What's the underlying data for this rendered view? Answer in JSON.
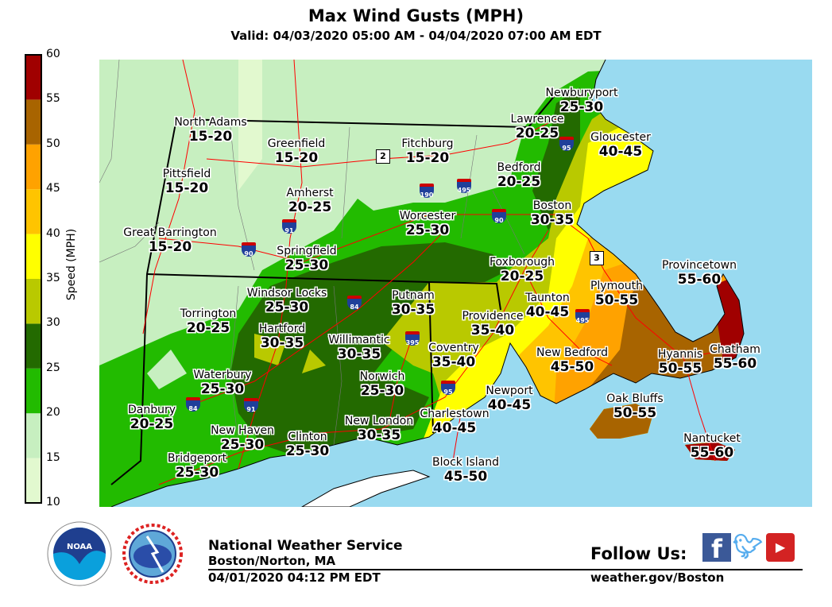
{
  "header": {
    "title": "Max Wind Gusts (MPH)",
    "valid": "Valid: 04/03/2020 05:00 AM - 04/04/2020 07:00 AM EDT"
  },
  "colorbar": {
    "label": "Speed (MPH)",
    "ticks": [
      "10",
      "15",
      "20",
      "25",
      "30",
      "35",
      "40",
      "45",
      "50",
      "55",
      "60"
    ],
    "colors": [
      "#e2f9cf",
      "#c7efc0",
      "#22bb00",
      "#236a00",
      "#b9c900",
      "#ffff00",
      "#ffc400",
      "#ffa200",
      "#a86400",
      "#a00000"
    ]
  },
  "map_colors": {
    "ocean": "#99daf0",
    "roads": "#ff0000",
    "borders": "#000000"
  },
  "locations": [
    {
      "name": "North Adams",
      "value": "15-20"
    },
    {
      "name": "Greenfield",
      "value": "15-20"
    },
    {
      "name": "Fitchburg",
      "value": "15-20"
    },
    {
      "name": "Pittsfield",
      "value": "15-20"
    },
    {
      "name": "Amherst",
      "value": "20-25"
    },
    {
      "name": "Bedford",
      "value": "20-25"
    },
    {
      "name": "Lawrence",
      "value": "20-25"
    },
    {
      "name": "Newburyport",
      "value": "25-30"
    },
    {
      "name": "Gloucester",
      "value": "40-45"
    },
    {
      "name": "Boston",
      "value": "30-35"
    },
    {
      "name": "Worcester",
      "value": "25-30"
    },
    {
      "name": "Great Barrington",
      "value": "15-20"
    },
    {
      "name": "Springfield",
      "value": "25-30"
    },
    {
      "name": "Foxborough",
      "value": "20-25"
    },
    {
      "name": "Provincetown",
      "value": "55-60"
    },
    {
      "name": "Plymouth",
      "value": "50-55"
    },
    {
      "name": "Windsor Locks",
      "value": "25-30"
    },
    {
      "name": "Putnam",
      "value": "30-35"
    },
    {
      "name": "Taunton",
      "value": "40-45"
    },
    {
      "name": "Torrington",
      "value": "20-25"
    },
    {
      "name": "Providence",
      "value": "35-40"
    },
    {
      "name": "Hartford",
      "value": "30-35"
    },
    {
      "name": "Willimantic",
      "value": "30-35"
    },
    {
      "name": "Coventry",
      "value": "35-40"
    },
    {
      "name": "New Bedford",
      "value": "45-50"
    },
    {
      "name": "Hyannis",
      "value": "50-55"
    },
    {
      "name": "Chatham",
      "value": "55-60"
    },
    {
      "name": "Waterbury",
      "value": "25-30"
    },
    {
      "name": "Norwich",
      "value": "25-30"
    },
    {
      "name": "Newport",
      "value": "40-45"
    },
    {
      "name": "Oak Bluffs",
      "value": "50-55"
    },
    {
      "name": "Danbury",
      "value": "20-25"
    },
    {
      "name": "New London",
      "value": "30-35"
    },
    {
      "name": "Charlestown",
      "value": "40-45"
    },
    {
      "name": "New Haven",
      "value": "25-30"
    },
    {
      "name": "Clinton",
      "value": "25-30"
    },
    {
      "name": "Nantucket",
      "value": "55-60"
    },
    {
      "name": "Bridgeport",
      "value": "25-30"
    },
    {
      "name": "Block Island",
      "value": "45-50"
    }
  ],
  "highways": {
    "interstates": [
      "190",
      "495",
      "90",
      "95",
      "91",
      "90",
      "84",
      "395",
      "495",
      "95",
      "84",
      "91"
    ],
    "routes": [
      "2",
      "3"
    ]
  },
  "footer": {
    "org": "National Weather Service",
    "office": "Boston/Norton, MA",
    "issued": "04/01/2020 04:12 PM EDT",
    "follow": "Follow Us:",
    "website": "weather.gov/Boston",
    "social_icons": [
      "facebook-icon",
      "twitter-icon",
      "youtube-icon"
    ],
    "logos": {
      "noaa": "NOAA",
      "nws": "NATIONAL WEATHER SERVICE"
    }
  }
}
